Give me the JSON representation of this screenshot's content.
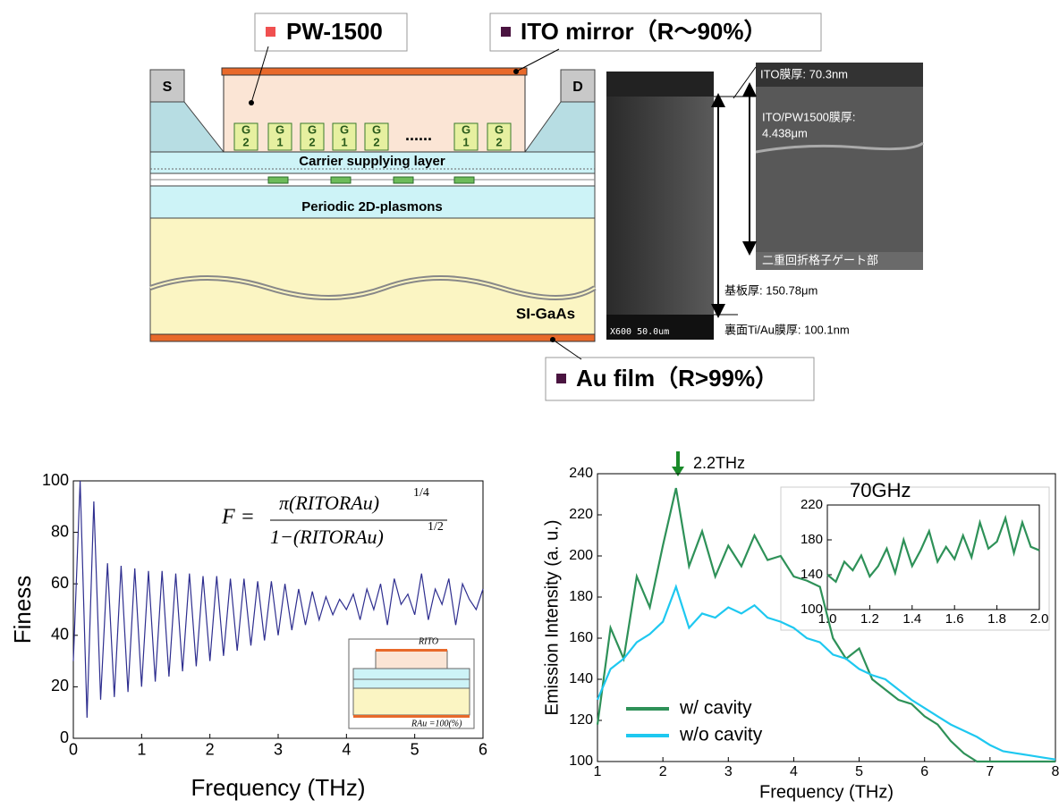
{
  "diagram": {
    "pw_label": "PW-1500",
    "ito_label": "ITO mirror（R～90%）",
    "au_label": "Au film（R>99%）",
    "source": "S",
    "drain": "D",
    "gates": [
      [
        "G",
        "2"
      ],
      [
        "G",
        "1"
      ],
      [
        "G",
        "2"
      ],
      [
        "G",
        "1"
      ],
      [
        "G",
        "2"
      ],
      [
        "G",
        "1"
      ],
      [
        "G",
        "2"
      ]
    ],
    "gate_dots": "......",
    "carrier_layer": "Carrier supplying layer",
    "plasmon_layer": "Periodic 2D-plasmons",
    "substrate": "SI-GaAs",
    "sem": {
      "scale": "X600  50.0um",
      "ito_thickness": "ITO膜厚: 70.3nm",
      "pw_thickness_1": "ITO/PW1500膜厚:",
      "pw_thickness_2": "4.438μm",
      "gate_region": "二重回折格子ゲート部",
      "substrate_thickness": "基板厚: 150.78μm",
      "back_thickness": "裏面Ti/Au膜厚: 100.1nm"
    }
  },
  "chart_data": [
    {
      "type": "line",
      "xlabel": "Frequency (THz)",
      "ylabel": "Finess",
      "color": "#2e2e8f",
      "x": [
        0,
        0.1,
        0.2,
        0.3,
        0.4,
        0.5,
        0.6,
        0.7,
        0.8,
        0.9,
        1,
        1.1,
        1.2,
        1.3,
        1.4,
        1.5,
        1.6,
        1.7,
        1.8,
        1.9,
        2,
        2.1,
        2.2,
        2.3,
        2.4,
        2.5,
        2.6,
        2.7,
        2.8,
        2.9,
        3,
        3.1,
        3.2,
        3.3,
        3.4,
        3.5,
        3.6,
        3.7,
        3.8,
        3.9,
        4,
        4.1,
        4.2,
        4.3,
        4.4,
        4.5,
        4.6,
        4.7,
        4.8,
        4.9,
        5,
        5.1,
        5.2,
        5.3,
        5.4,
        5.5,
        5.6,
        5.7,
        5.8,
        5.9,
        6
      ],
      "values": [
        30,
        100,
        8,
        92,
        15,
        68,
        16,
        67,
        18,
        66,
        20,
        65,
        22,
        65,
        24,
        64,
        26,
        64,
        28,
        63,
        30,
        63,
        32,
        62,
        34,
        62,
        36,
        61,
        38,
        61,
        40,
        60,
        42,
        58,
        44,
        57,
        46,
        55,
        48,
        54,
        50,
        56,
        46,
        58,
        50,
        60,
        44,
        62,
        52,
        56,
        48,
        64,
        46,
        58,
        52,
        62,
        44,
        60,
        54,
        50,
        58
      ],
      "xlim": [
        0,
        6
      ],
      "xticks": [
        0,
        1,
        2,
        3,
        4,
        5,
        6
      ],
      "ylim": [
        0,
        100
      ],
      "yticks": [
        0,
        20,
        40,
        60,
        80,
        100
      ],
      "formula": {
        "lhs": "F =",
        "num": "π(RITORAu)",
        "num_exp": "1/4",
        "den": "1−(RITORAu)",
        "den_exp": "1/2"
      },
      "inset_labels": {
        "r_ito": "RITO",
        "r_au": "RAu =100(%)"
      }
    },
    {
      "type": "line",
      "xlabel": "Frequency (THz)",
      "ylabel": "Emission Intensity (a. u.)",
      "annotation": "2.2THz",
      "x": [
        1,
        1.2,
        1.4,
        1.6,
        1.8,
        2,
        2.2,
        2.4,
        2.6,
        2.8,
        3,
        3.2,
        3.4,
        3.6,
        3.8,
        4,
        4.2,
        4.4,
        4.6,
        4.8,
        5,
        5.2,
        5.4,
        5.6,
        5.8,
        6,
        6.2,
        6.4,
        6.6,
        6.8,
        7,
        7.2,
        7.4,
        7.6,
        7.8,
        8
      ],
      "series": [
        {
          "name": "w/ cavity",
          "color": "#2e9158",
          "values": [
            118,
            165,
            150,
            190,
            175,
            205,
            233,
            195,
            212,
            190,
            205,
            195,
            210,
            198,
            200,
            190,
            188,
            185,
            160,
            150,
            155,
            140,
            135,
            130,
            128,
            122,
            118,
            110,
            104,
            100,
            100,
            100,
            100,
            100,
            100,
            100
          ]
        },
        {
          "name": "w/o cavity",
          "color": "#1ec8f0",
          "values": [
            130,
            145,
            150,
            158,
            162,
            168,
            185,
            165,
            172,
            170,
            175,
            172,
            176,
            170,
            168,
            165,
            160,
            158,
            152,
            150,
            145,
            142,
            140,
            135,
            130,
            126,
            122,
            118,
            115,
            112,
            108,
            105,
            104,
            103,
            102,
            101
          ]
        }
      ],
      "xlim": [
        1,
        8
      ],
      "xticks": [
        1,
        2,
        3,
        4,
        5,
        6,
        7,
        8
      ],
      "ylim": [
        100,
        240
      ],
      "yticks": [
        100,
        120,
        140,
        160,
        180,
        200,
        220,
        240
      ],
      "inset": {
        "type": "line",
        "annotation": "70GHz",
        "x": [
          1,
          1.04,
          1.08,
          1.12,
          1.16,
          1.2,
          1.24,
          1.28,
          1.32,
          1.36,
          1.4,
          1.44,
          1.48,
          1.52,
          1.56,
          1.6,
          1.64,
          1.68,
          1.72,
          1.76,
          1.8,
          1.84,
          1.88,
          1.92,
          1.96,
          2
        ],
        "series": [
          {
            "color": "#2e9158",
            "values": [
              140,
              132,
              155,
              145,
              162,
              138,
              150,
              170,
              142,
              180,
              150,
              168,
              190,
              155,
              172,
              158,
              185,
              160,
              200,
              170,
              178,
              205,
              165,
              200,
              172,
              168
            ]
          }
        ],
        "xlim": [
          1,
          2
        ],
        "xticks": [
          {
            "value": 1,
            "label": "1.0"
          },
          1.2,
          1.4,
          1.6,
          1.8,
          {
            "value": 2,
            "label": "2.0"
          }
        ],
        "ylim": [
          100,
          220
        ],
        "yticks": [
          100,
          140,
          180,
          220
        ]
      }
    }
  ]
}
